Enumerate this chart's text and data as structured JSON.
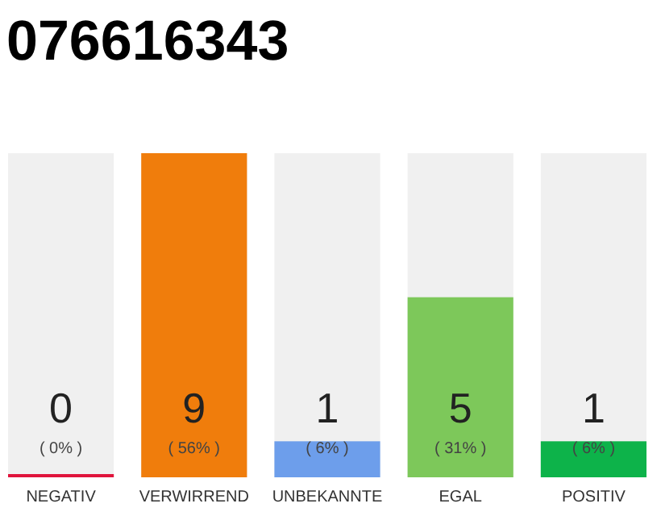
{
  "chart_data": {
    "type": "bar",
    "title": "076616343",
    "categories": [
      "NEGATIV",
      "VERWIRREND",
      "UNBEKANNTE",
      "EGAL",
      "POSITIV"
    ],
    "values": [
      0,
      9,
      1,
      5,
      1
    ],
    "colors": [
      "#e0143c",
      "#f07d0c",
      "#6d9eeb",
      "#7dc85a",
      "#0db34a"
    ],
    "ylim": [
      0,
      9
    ],
    "tick_labels": "x",
    "data_labels": true,
    "annotations": [
      "( 0% )",
      "( 56% )",
      "( 6% )",
      "( 31% )",
      "( 6% )"
    ]
  }
}
